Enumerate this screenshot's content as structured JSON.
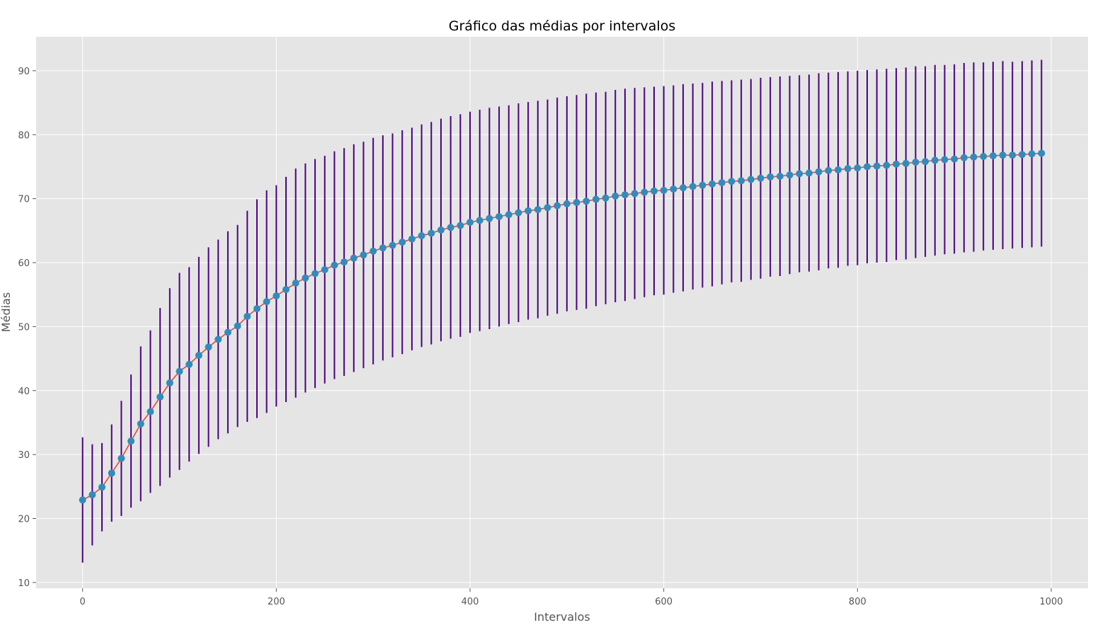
{
  "chart_data": {
    "type": "line",
    "title": "Gráfico das médias por intervalos",
    "xlabel": "Intervalos",
    "ylabel": "Médias",
    "xlim": [
      -48,
      1038
    ],
    "ylim": [
      9.1,
      95.3
    ],
    "xticks": [
      0,
      200,
      400,
      600,
      800,
      1000
    ],
    "yticks": [
      10,
      20,
      30,
      40,
      50,
      60,
      70,
      80,
      90
    ],
    "grid": true,
    "legend": "none",
    "colors": {
      "background": "#e5e5e5",
      "grid": "#ffffff",
      "line": "#e24a33",
      "marker": "#348abd",
      "errorbar": "#4b0082"
    },
    "series": [
      {
        "x": [
          0,
          10,
          20,
          30,
          40,
          50,
          60,
          70,
          80,
          90,
          100,
          110,
          120,
          130,
          140,
          150,
          160,
          170,
          180,
          190,
          200,
          210,
          220,
          230,
          240,
          250,
          260,
          270,
          280,
          290,
          300,
          310,
          320,
          330,
          340,
          350,
          360,
          370,
          380,
          390,
          400,
          410,
          420,
          430,
          440,
          450,
          460,
          470,
          480,
          490,
          500,
          510,
          520,
          530,
          540,
          550,
          560,
          570,
          580,
          590,
          600,
          610,
          620,
          630,
          640,
          650,
          660,
          670,
          680,
          690,
          700,
          710,
          720,
          730,
          740,
          750,
          760,
          770,
          780,
          790,
          800,
          810,
          820,
          830,
          840,
          850,
          860,
          870,
          880,
          890,
          900,
          910,
          920,
          930,
          940,
          950,
          960,
          970,
          980,
          990
        ],
        "y": [
          22.9,
          23.7,
          24.9,
          27.1,
          29.4,
          32.1,
          34.8,
          36.7,
          39.0,
          41.2,
          43.0,
          44.1,
          45.5,
          46.8,
          48.0,
          49.1,
          50.1,
          51.6,
          52.8,
          53.9,
          54.8,
          55.8,
          56.8,
          57.6,
          58.3,
          58.9,
          59.6,
          60.1,
          60.7,
          61.2,
          61.8,
          62.3,
          62.7,
          63.2,
          63.7,
          64.2,
          64.6,
          65.1,
          65.5,
          65.8,
          66.3,
          66.6,
          66.9,
          67.2,
          67.5,
          67.8,
          68.1,
          68.3,
          68.6,
          68.9,
          69.2,
          69.4,
          69.6,
          69.9,
          70.1,
          70.4,
          70.6,
          70.8,
          71.0,
          71.2,
          71.3,
          71.5,
          71.7,
          71.9,
          72.1,
          72.3,
          72.5,
          72.7,
          72.8,
          73.0,
          73.2,
          73.4,
          73.5,
          73.7,
          73.9,
          74.0,
          74.2,
          74.4,
          74.5,
          74.7,
          74.8,
          75.0,
          75.1,
          75.2,
          75.4,
          75.5,
          75.7,
          75.8,
          76.0,
          76.1,
          76.2,
          76.4,
          76.5,
          76.6,
          76.7,
          76.8,
          76.8,
          76.9,
          77.0,
          77.1
        ],
        "yerr": [
          9.8,
          7.9,
          6.9,
          7.6,
          9.0,
          10.4,
          12.1,
          12.7,
          13.9,
          14.8,
          15.4,
          15.2,
          15.4,
          15.6,
          15.6,
          15.8,
          15.8,
          16.5,
          17.1,
          17.4,
          17.3,
          17.6,
          17.9,
          17.9,
          17.9,
          17.8,
          17.8,
          17.8,
          17.8,
          17.7,
          17.7,
          17.6,
          17.5,
          17.5,
          17.4,
          17.4,
          17.4,
          17.4,
          17.4,
          17.4,
          17.3,
          17.3,
          17.3,
          17.2,
          17.1,
          17.1,
          17.0,
          17.0,
          16.9,
          16.9,
          16.8,
          16.8,
          16.8,
          16.7,
          16.6,
          16.6,
          16.6,
          16.5,
          16.4,
          16.3,
          16.3,
          16.2,
          16.2,
          16.1,
          16.0,
          16.0,
          15.9,
          15.8,
          15.8,
          15.7,
          15.7,
          15.6,
          15.6,
          15.5,
          15.4,
          15.4,
          15.4,
          15.3,
          15.3,
          15.2,
          15.2,
          15.1,
          15.1,
          15.1,
          15.0,
          15.0,
          15.0,
          14.9,
          14.9,
          14.8,
          14.8,
          14.8,
          14.8,
          14.7,
          14.7,
          14.7,
          14.6,
          14.6,
          14.6,
          14.6
        ]
      }
    ]
  }
}
